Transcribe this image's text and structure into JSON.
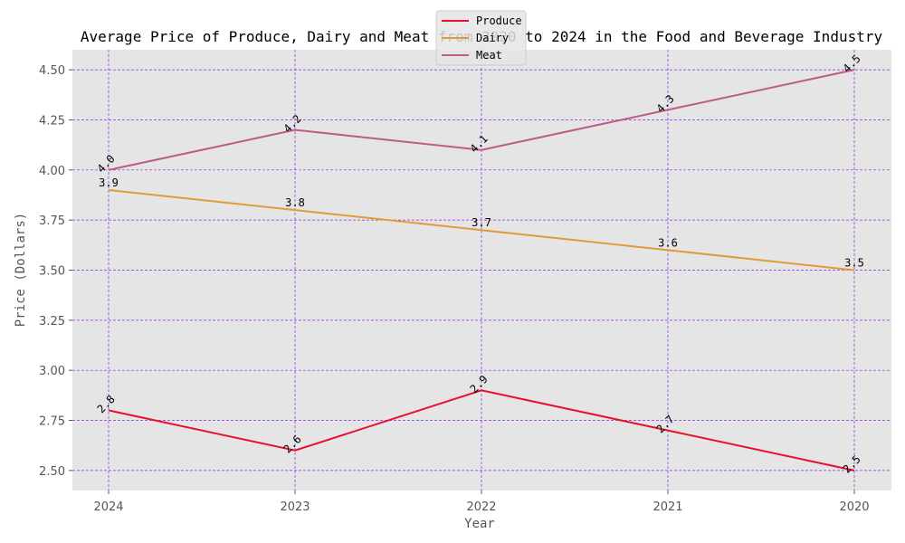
{
  "chart_data": {
    "type": "line",
    "title": "Average Price of Produce, Dairy and Meat from 2020 to 2024 in the Food and Beverage Industry",
    "xlabel": "Year",
    "ylabel": "Price (Dollars)",
    "categories": [
      "2024",
      "2023",
      "2022",
      "2021",
      "2020"
    ],
    "ylim": [
      2.4,
      4.6
    ],
    "yticks": [
      "2.50",
      "2.75",
      "3.00",
      "3.25",
      "3.50",
      "3.75",
      "4.00",
      "4.25",
      "4.50"
    ],
    "grid": true,
    "legend_position": "top-center",
    "series": [
      {
        "name": "Produce",
        "color": "#e8112d",
        "values": [
          2.8,
          2.6,
          2.9,
          2.7,
          2.5
        ],
        "labels": [
          "2.8",
          "2.6",
          "2.9",
          "2.7",
          "2.5"
        ],
        "label_rotation": -45
      },
      {
        "name": "Dairy",
        "color": "#e09b37",
        "values": [
          3.9,
          3.8,
          3.7,
          3.6,
          3.5
        ],
        "labels": [
          "3.9",
          "3.8",
          "3.7",
          "3.6",
          "3.5"
        ],
        "label_rotation": 0
      },
      {
        "name": "Meat",
        "color": "#bd5c84",
        "values": [
          4.0,
          4.2,
          4.1,
          4.3,
          4.5
        ],
        "labels": [
          "4.0",
          "4.2",
          "4.1",
          "4.3",
          "4.5"
        ],
        "label_rotation": -45
      }
    ]
  }
}
